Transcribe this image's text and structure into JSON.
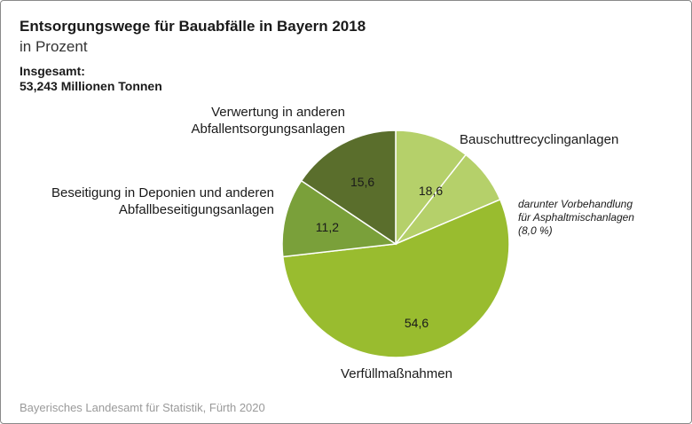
{
  "chart_data": {
    "type": "pie",
    "title": "Entsorgungswege für Bauabfälle in Bayern 2018",
    "subtitle": "in Prozent",
    "total_label": "Insgesamt:",
    "total_value": "53,243 Millionen Tonnen",
    "slices": [
      {
        "name_lines": [
          "Bauschuttrecyclinganlagen"
        ],
        "value": 18.6,
        "value_label": "18,6",
        "color": "#b5d06a"
      },
      {
        "name_lines": [
          "Verfüllmaßnahmen"
        ],
        "value": 54.6,
        "value_label": "54,6",
        "color": "#99bc2f"
      },
      {
        "name_lines": [
          "Beseitigung in Deponien und anderen",
          "Abfallbeseitigungsanlagen"
        ],
        "value": 11.2,
        "value_label": "11,2",
        "color": "#7aa03a"
      },
      {
        "name_lines": [
          "Verwertung in anderen",
          "Abfallentsorgungsanlagen"
        ],
        "value": 15.6,
        "value_label": "15,6",
        "color": "#5a6e2c"
      }
    ],
    "sub_slice": {
      "parent": "Bauschuttrecyclinganlagen",
      "value": 8.0,
      "label_lines": [
        "darunter Vorbehandlung",
        "für Asphaltmischanlagen",
        "(8,0 %)"
      ],
      "color": "#b5d06a"
    }
  },
  "source": "Bayerisches Landesamt für Statistik, Fürth 2020"
}
